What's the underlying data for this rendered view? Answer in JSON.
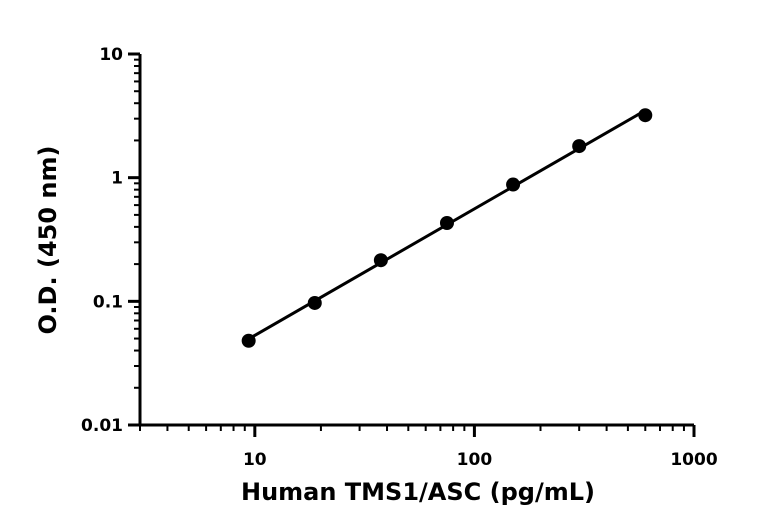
{
  "chart_data": {
    "type": "scatter",
    "title": "",
    "xlabel": "Human TMS1/ASC (pg/mL)",
    "ylabel": "O.D. (450 nm)",
    "xscale": "log",
    "yscale": "log",
    "xlim": [
      3,
      1000
    ],
    "ylim": [
      0.01,
      10
    ],
    "x_ticks": [
      {
        "value": 10,
        "label": "10"
      },
      {
        "value": 100,
        "label": "100"
      },
      {
        "value": 1000,
        "label": "1000"
      }
    ],
    "y_ticks": [
      {
        "value": 0.01,
        "label": "0.01"
      },
      {
        "value": 0.1,
        "label": "0.1"
      },
      {
        "value": 1,
        "label": "1"
      },
      {
        "value": 10,
        "label": "10"
      }
    ],
    "grid": false,
    "legend": "none",
    "fit_line": true,
    "series": [
      {
        "color": "#000000",
        "points": [
          {
            "x": 9.375,
            "y": 0.048
          },
          {
            "x": 18.75,
            "y": 0.097
          },
          {
            "x": 37.5,
            "y": 0.215
          },
          {
            "x": 75,
            "y": 0.43
          },
          {
            "x": 150,
            "y": 0.88
          },
          {
            "x": 300,
            "y": 1.8
          },
          {
            "x": 600,
            "y": 3.2
          }
        ]
      }
    ]
  }
}
